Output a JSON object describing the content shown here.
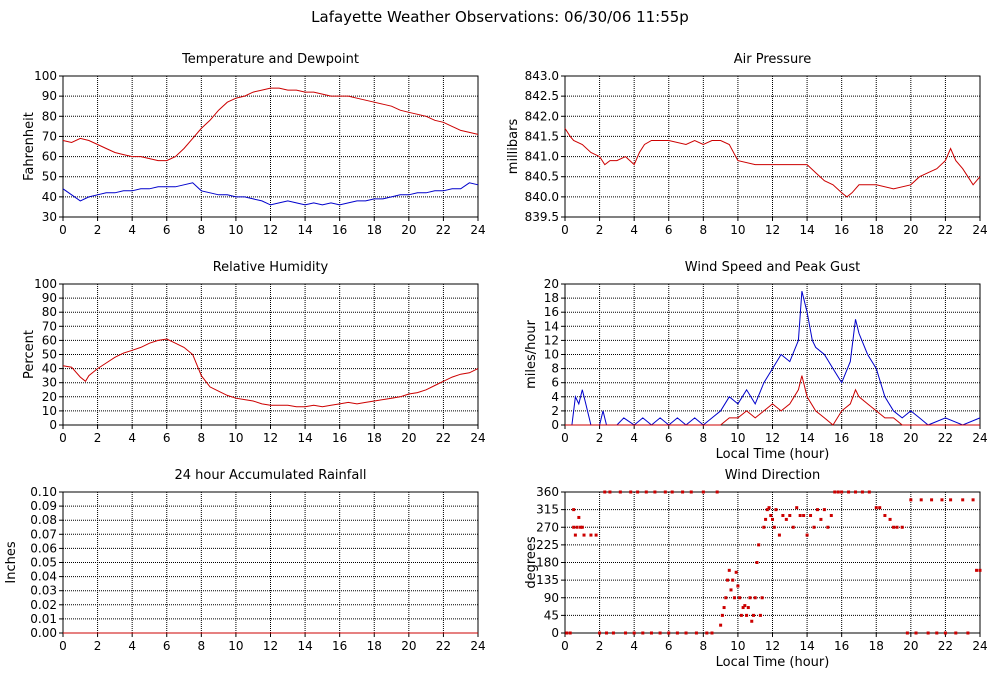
{
  "page": {
    "title": "Lafayette Weather Observations: 06/30/06 11:55p"
  },
  "chart_data": [
    {
      "id": "temp",
      "type": "line",
      "title": "Temperature and Dewpoint",
      "xlabel": "",
      "ylabel": "Fahrenheit",
      "xlim": [
        0,
        24
      ],
      "ylim": [
        30,
        100
      ],
      "xticks": [
        0,
        2,
        4,
        6,
        8,
        10,
        12,
        14,
        16,
        18,
        20,
        22,
        24
      ],
      "yticks": [
        30,
        40,
        50,
        60,
        70,
        80,
        90,
        100
      ],
      "grid": true,
      "series": [
        {
          "color": "#cc0000",
          "x": [
            0,
            0.5,
            1,
            1.5,
            2,
            2.5,
            3,
            3.5,
            4,
            4.5,
            5,
            5.5,
            6,
            6.5,
            7,
            7.5,
            8,
            8.5,
            9,
            9.5,
            10,
            10.5,
            11,
            11.5,
            12,
            12.5,
            13,
            13.5,
            14,
            14.5,
            15,
            15.5,
            16,
            16.5,
            17,
            17.5,
            18,
            18.5,
            19,
            19.5,
            20,
            20.5,
            21,
            21.5,
            22,
            22.5,
            23,
            23.5,
            24
          ],
          "y": [
            68,
            67,
            69,
            68,
            66,
            64,
            62,
            61,
            60,
            60,
            59,
            58,
            58,
            60,
            64,
            69,
            74,
            78,
            83,
            87,
            89,
            90,
            92,
            93,
            94,
            94,
            93,
            93,
            92,
            92,
            91,
            90,
            90,
            90,
            89,
            88,
            87,
            86,
            85,
            83,
            82,
            81,
            80,
            78,
            77,
            75,
            73,
            72,
            71
          ]
        },
        {
          "color": "#0000cc",
          "x": [
            0,
            0.5,
            1,
            1.5,
            2,
            2.5,
            3,
            3.5,
            4,
            4.5,
            5,
            5.5,
            6,
            6.5,
            7,
            7.5,
            8,
            8.5,
            9,
            9.5,
            10,
            10.5,
            11,
            11.5,
            12,
            12.5,
            13,
            13.5,
            14,
            14.5,
            15,
            15.5,
            16,
            16.5,
            17,
            17.5,
            18,
            18.5,
            19,
            19.5,
            20,
            20.5,
            21,
            21.5,
            22,
            22.5,
            23,
            23.5,
            24
          ],
          "y": [
            44,
            41,
            38,
            40,
            41,
            42,
            42,
            43,
            43,
            44,
            44,
            45,
            45,
            45,
            46,
            47,
            43,
            42,
            41,
            41,
            40,
            40,
            39,
            38,
            36,
            37,
            38,
            37,
            36,
            37,
            36,
            37,
            36,
            37,
            38,
            38,
            39,
            39,
            40,
            41,
            41,
            42,
            42,
            43,
            43,
            44,
            44,
            47,
            46
          ]
        }
      ]
    },
    {
      "id": "press",
      "type": "line",
      "title": "Air Pressure",
      "xlabel": "",
      "ylabel": "millibars",
      "xlim": [
        0,
        24
      ],
      "ylim": [
        839.5,
        843.0
      ],
      "xticks": [
        0,
        2,
        4,
        6,
        8,
        10,
        12,
        14,
        16,
        18,
        20,
        22,
        24
      ],
      "yticks": [
        839.5,
        840.0,
        840.5,
        841.0,
        841.5,
        842.0,
        842.5,
        843.0
      ],
      "ytick_labels": [
        "839.5",
        "840.0",
        "840.5",
        "841.0",
        "841.5",
        "842.0",
        "842.5",
        "843.0"
      ],
      "grid": true,
      "series": [
        {
          "color": "#cc0000",
          "x": [
            0,
            0.3,
            0.5,
            1,
            1.5,
            2,
            2.3,
            2.6,
            3,
            3.5,
            4,
            4.3,
            4.6,
            5,
            6,
            7,
            7.5,
            8,
            8.5,
            9,
            9.5,
            10,
            11,
            12,
            13,
            14,
            14.5,
            15,
            15.5,
            16,
            16.3,
            16.6,
            17,
            18,
            19,
            20,
            20.5,
            21,
            21.5,
            22,
            22.3,
            22.6,
            23,
            23.3,
            23.6,
            24
          ],
          "y": [
            841.7,
            841.5,
            841.4,
            841.3,
            841.1,
            841.0,
            840.8,
            840.9,
            840.9,
            841.0,
            840.8,
            841.1,
            841.3,
            841.4,
            841.4,
            841.3,
            841.4,
            841.3,
            841.4,
            841.4,
            841.3,
            840.9,
            840.8,
            840.8,
            840.8,
            840.8,
            840.6,
            840.4,
            840.3,
            840.1,
            840.0,
            840.1,
            840.3,
            840.3,
            840.2,
            840.3,
            840.5,
            840.6,
            840.7,
            840.9,
            841.2,
            840.9,
            840.7,
            840.5,
            840.3,
            840.5
          ]
        }
      ]
    },
    {
      "id": "rh",
      "type": "line",
      "title": "Relative Humidity",
      "xlabel": "",
      "ylabel": "Percent",
      "xlim": [
        0,
        24
      ],
      "ylim": [
        0,
        100
      ],
      "xticks": [
        0,
        2,
        4,
        6,
        8,
        10,
        12,
        14,
        16,
        18,
        20,
        22,
        24
      ],
      "yticks": [
        0,
        10,
        20,
        30,
        40,
        50,
        60,
        70,
        80,
        90,
        100
      ],
      "grid": true,
      "series": [
        {
          "color": "#cc0000",
          "x": [
            0,
            0.5,
            1,
            1.3,
            1.5,
            2,
            2.5,
            3,
            3.5,
            4,
            4.5,
            5,
            5.5,
            6,
            6.5,
            7,
            7.5,
            8,
            8.5,
            9,
            9.5,
            10,
            10.5,
            11,
            11.5,
            12,
            12.5,
            13,
            13.5,
            14,
            14.5,
            15,
            15.5,
            16,
            16.5,
            17,
            17.5,
            18,
            18.5,
            19,
            19.5,
            20,
            20.5,
            21,
            21.5,
            22,
            22.5,
            23,
            23.5,
            24
          ],
          "y": [
            42,
            41,
            34,
            31,
            35,
            40,
            44,
            48,
            51,
            53,
            55,
            58,
            60,
            61,
            58,
            55,
            50,
            35,
            27,
            24,
            21,
            19,
            18,
            17,
            15,
            14,
            14,
            14,
            13,
            13,
            14,
            13,
            14,
            15,
            16,
            15,
            16,
            17,
            18,
            19,
            20,
            22,
            23,
            25,
            28,
            31,
            34,
            36,
            37,
            40
          ]
        }
      ]
    },
    {
      "id": "wind",
      "type": "line",
      "title": "Wind Speed and Peak Gust",
      "xlabel": "Local Time (hour)",
      "ylabel": "miles/hour",
      "xlim": [
        0,
        24
      ],
      "ylim": [
        0,
        20
      ],
      "xticks": [
        0,
        2,
        4,
        6,
        8,
        10,
        12,
        14,
        16,
        18,
        20,
        22,
        24
      ],
      "yticks": [
        0,
        2,
        4,
        6,
        8,
        10,
        12,
        14,
        16,
        18,
        20
      ],
      "grid": true,
      "series": [
        {
          "color": "#0000cc",
          "x": [
            0,
            0.4,
            0.6,
            0.8,
            1,
            1.2,
            1.5,
            2,
            2.2,
            2.4,
            3,
            3.4,
            4,
            4.5,
            5,
            5.5,
            6,
            6.5,
            7,
            7.5,
            8,
            8.5,
            9,
            9.5,
            10,
            10.5,
            11,
            11.5,
            12,
            12.5,
            13,
            13.5,
            13.7,
            14,
            14.3,
            14.5,
            15,
            15.5,
            16,
            16.5,
            16.8,
            17,
            17.5,
            18,
            18.5,
            19,
            19.5,
            20,
            20.5,
            21,
            22,
            23,
            24
          ],
          "y": [
            0,
            0,
            4,
            3,
            5,
            3,
            0,
            0,
            2,
            0,
            0,
            1,
            0,
            1,
            0,
            1,
            0,
            1,
            0,
            1,
            0,
            1,
            2,
            4,
            3,
            5,
            3,
            6,
            8,
            10,
            9,
            12,
            19,
            16,
            12,
            11,
            10,
            8,
            6,
            9,
            15,
            13,
            10,
            8,
            4,
            2,
            1,
            2,
            1,
            0,
            1,
            0,
            1
          ]
        },
        {
          "color": "#cc0000",
          "x": [
            0,
            8,
            9,
            9.5,
            10,
            10.5,
            11,
            11.5,
            12,
            12.5,
            13,
            13.5,
            13.7,
            14,
            14.5,
            15,
            15.5,
            16,
            16.5,
            16.8,
            17,
            17.5,
            18,
            18.5,
            19,
            19.5,
            20,
            24
          ],
          "y": [
            0,
            0,
            0,
            1,
            1,
            2,
            1,
            2,
            3,
            2,
            3,
            5,
            7,
            4,
            2,
            1,
            0,
            2,
            3,
            5,
            4,
            3,
            2,
            1,
            1,
            0,
            0,
            0
          ]
        }
      ]
    },
    {
      "id": "rain",
      "type": "line",
      "title": "24 hour Accumulated Rainfall",
      "xlabel": "",
      "ylabel": "Inches",
      "xlim": [
        0,
        24
      ],
      "ylim": [
        0,
        0.1
      ],
      "xticks": [
        0,
        2,
        4,
        6,
        8,
        10,
        12,
        14,
        16,
        18,
        20,
        22,
        24
      ],
      "yticks": [
        0,
        0.01,
        0.02,
        0.03,
        0.04,
        0.05,
        0.06,
        0.07,
        0.08,
        0.09,
        0.1
      ],
      "ytick_labels": [
        "0.00",
        "0.01",
        "0.02",
        "0.03",
        "0.04",
        "0.05",
        "0.06",
        "0.07",
        "0.08",
        "0.09",
        "0.10"
      ],
      "grid": true,
      "series": [
        {
          "color": "#cc0000",
          "x": [
            0,
            24
          ],
          "y": [
            0,
            0
          ]
        }
      ]
    },
    {
      "id": "dir",
      "type": "scatter",
      "title": "Wind Direction",
      "xlabel": "Local Time (hour)",
      "ylabel": "degrees",
      "xlim": [
        0,
        24
      ],
      "ylim": [
        0,
        360
      ],
      "xticks": [
        0,
        2,
        4,
        6,
        8,
        10,
        12,
        14,
        16,
        18,
        20,
        22,
        24
      ],
      "yticks": [
        0,
        45,
        90,
        135,
        180,
        225,
        270,
        315,
        360
      ],
      "grid": true,
      "series": [
        {
          "color": "#cc0000",
          "x": [
            0.1,
            0.3,
            0.5,
            0.5,
            0.6,
            0.7,
            0.8,
            0.9,
            1.0,
            1.1,
            1.5,
            1.8,
            2.0,
            2.3,
            2.4,
            2.6,
            2.8,
            3.2,
            3.5,
            3.8,
            4.0,
            4.2,
            4.5,
            4.7,
            5.0,
            5.2,
            5.5,
            5.8,
            6.0,
            6.2,
            6.5,
            6.8,
            7.0,
            7.3,
            7.6,
            8.0,
            8.2,
            8.5,
            8.8,
            9.0,
            9.1,
            9.2,
            9.3,
            9.4,
            9.5,
            9.6,
            9.7,
            9.8,
            9.9,
            10.0,
            10.1,
            10.2,
            10.3,
            10.4,
            10.5,
            10.6,
            10.7,
            10.8,
            10.9,
            11.0,
            11.1,
            11.2,
            11.3,
            11.4,
            11.5,
            11.6,
            11.7,
            11.8,
            11.9,
            12.0,
            12.1,
            12.2,
            12.4,
            12.6,
            12.8,
            13.0,
            13.2,
            13.4,
            13.6,
            13.8,
            14.0,
            14.2,
            14.4,
            14.6,
            14.8,
            15.0,
            15.2,
            15.4,
            15.6,
            15.8,
            16.0,
            16.4,
            16.8,
            17.2,
            17.6,
            18.0,
            18.2,
            18.5,
            18.8,
            19.0,
            19.2,
            19.5,
            19.8,
            20.0,
            20.3,
            20.6,
            21.0,
            21.2,
            21.5,
            21.8,
            22.0,
            22.3,
            22.6,
            23.0,
            23.3,
            23.6,
            23.8,
            24.0
          ],
          "y": [
            0,
            0,
            315,
            270,
            250,
            270,
            295,
            270,
            270,
            250,
            250,
            250,
            0,
            360,
            0,
            360,
            0,
            360,
            0,
            360,
            0,
            360,
            0,
            360,
            0,
            360,
            0,
            360,
            0,
            360,
            0,
            360,
            0,
            360,
            0,
            360,
            0,
            0,
            360,
            20,
            45,
            65,
            90,
            135,
            160,
            110,
            135,
            90,
            155,
            120,
            90,
            45,
            65,
            70,
            45,
            65,
            90,
            30,
            45,
            90,
            180,
            225,
            45,
            90,
            270,
            290,
            315,
            320,
            300,
            290,
            270,
            315,
            250,
            300,
            290,
            300,
            270,
            320,
            300,
            300,
            250,
            300,
            270,
            315,
            290,
            315,
            270,
            300,
            360,
            360,
            360,
            360,
            360,
            360,
            360,
            320,
            320,
            300,
            290,
            270,
            270,
            270,
            0,
            340,
            0,
            340,
            0,
            340,
            0,
            340,
            0,
            340,
            0,
            340,
            0,
            340,
            160,
            160
          ]
        }
      ]
    }
  ]
}
